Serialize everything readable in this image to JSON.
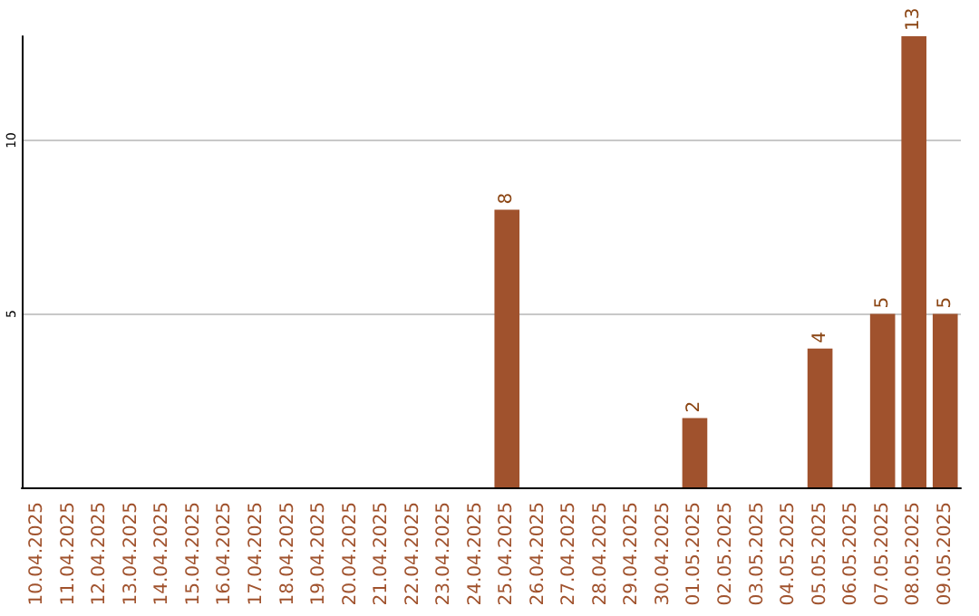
{
  "chart_data": {
    "type": "bar",
    "categories": [
      "10.04.2025",
      "11.04.2025",
      "12.04.2025",
      "13.04.2025",
      "14.04.2025",
      "15.04.2025",
      "16.04.2025",
      "17.04.2025",
      "18.04.2025",
      "19.04.2025",
      "20.04.2025",
      "21.04.2025",
      "22.04.2025",
      "23.04.2025",
      "24.04.2025",
      "25.04.2025",
      "26.04.2025",
      "27.04.2025",
      "28.04.2025",
      "29.04.2025",
      "30.04.2025",
      "01.05.2025",
      "02.05.2025",
      "03.05.2025",
      "04.05.2025",
      "05.05.2025",
      "06.05.2025",
      "07.05.2025",
      "08.05.2025",
      "09.05.2025"
    ],
    "values": [
      null,
      null,
      null,
      null,
      null,
      null,
      null,
      null,
      null,
      null,
      null,
      null,
      null,
      null,
      null,
      8,
      null,
      null,
      null,
      null,
      null,
      2,
      null,
      null,
      null,
      4,
      null,
      5,
      13,
      5
    ],
    "color": "#a0522d",
    "ylim": [
      0,
      13
    ],
    "yticks": [
      5,
      10
    ],
    "grid": "y",
    "data_labels": true
  }
}
